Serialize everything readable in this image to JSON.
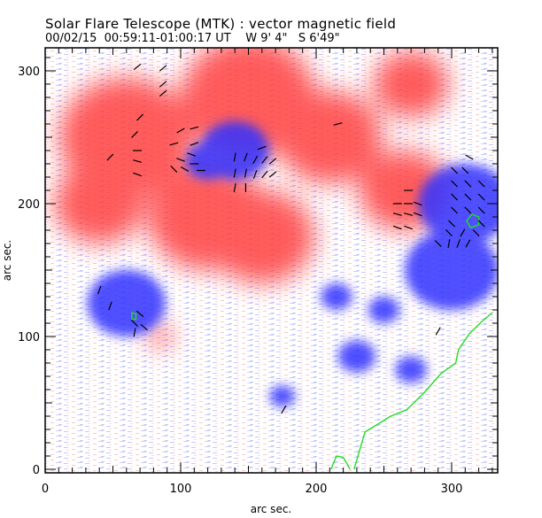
{
  "header": {
    "title": "Solar Flare Telescope (MTK) : vector magnetic field",
    "date": "00/02/15",
    "time_range": "00:59:11-01:00:17 UT",
    "position_w": "W 9' 4\"",
    "position_s": "S 6'49\""
  },
  "axes": {
    "xlabel": "arc sec.",
    "ylabel": "arc sec.",
    "xlim": [
      0,
      335
    ],
    "ylim": [
      0,
      315
    ],
    "x_ticks": [
      "0",
      "100",
      "200",
      "300"
    ],
    "y_ticks": [
      "0",
      "100",
      "200",
      "300"
    ],
    "x_tick_values": [
      0,
      100,
      200,
      300
    ],
    "y_tick_values": [
      0,
      100,
      200,
      300
    ]
  },
  "colors": {
    "positive_polarity": "#ff4040",
    "negative_polarity": "#3030ff",
    "contour": "#22dd22",
    "vectors": "#000000"
  },
  "chart_data": {
    "type": "heatmap",
    "title": "Solar Flare Telescope (MTK) : vector magnetic field",
    "xlabel": "arc sec.",
    "ylabel": "arc sec.",
    "xlim": [
      0,
      335
    ],
    "ylim": [
      0,
      315
    ],
    "positive_regions": [
      {
        "x": 60,
        "y": 250,
        "r": 45
      },
      {
        "x": 40,
        "y": 200,
        "r": 30
      },
      {
        "x": 120,
        "y": 190,
        "r": 40
      },
      {
        "x": 160,
        "y": 175,
        "r": 35
      },
      {
        "x": 150,
        "y": 280,
        "r": 45
      },
      {
        "x": 210,
        "y": 250,
        "r": 35
      },
      {
        "x": 265,
        "y": 210,
        "r": 30
      },
      {
        "x": 270,
        "y": 290,
        "r": 25
      },
      {
        "x": 85,
        "y": 100,
        "r": 8
      }
    ],
    "negative_regions": [
      {
        "x": 140,
        "y": 240,
        "r": 22
      },
      {
        "x": 120,
        "y": 232,
        "r": 14
      },
      {
        "x": 60,
        "y": 125,
        "r": 25
      },
      {
        "x": 310,
        "y": 200,
        "r": 30
      },
      {
        "x": 300,
        "y": 150,
        "r": 30
      },
      {
        "x": 215,
        "y": 130,
        "r": 10
      },
      {
        "x": 250,
        "y": 120,
        "r": 10
      },
      {
        "x": 230,
        "y": 85,
        "r": 12
      },
      {
        "x": 175,
        "y": 55,
        "r": 8
      },
      {
        "x": 270,
        "y": 75,
        "r": 10
      }
    ],
    "contours": [
      [
        [
          228,
          0
        ],
        [
          236,
          28
        ],
        [
          255,
          40
        ],
        [
          267,
          45
        ],
        [
          280,
          58
        ],
        [
          292,
          72
        ],
        [
          303,
          80
        ],
        [
          305,
          90
        ],
        [
          313,
          102
        ],
        [
          322,
          111
        ],
        [
          330,
          118
        ]
      ],
      [
        [
          211,
          0
        ],
        [
          215,
          10
        ],
        [
          220,
          9
        ],
        [
          225,
          0
        ]
      ],
      [
        [
          315,
          192
        ],
        [
          320,
          190
        ],
        [
          320,
          184
        ],
        [
          314,
          182
        ],
        [
          311,
          187
        ]
      ],
      [
        [
          64,
          118
        ],
        [
          67,
          117
        ],
        [
          67,
          113
        ],
        [
          64,
          113
        ]
      ]
    ],
    "vectors": [
      {
        "x": 68,
        "y": 303,
        "a": 40
      },
      {
        "x": 87,
        "y": 302,
        "a": 40
      },
      {
        "x": 87,
        "y": 290,
        "a": 40
      },
      {
        "x": 87,
        "y": 283,
        "a": 40
      },
      {
        "x": 70,
        "y": 265,
        "a": 45
      },
      {
        "x": 66,
        "y": 252,
        "a": 45
      },
      {
        "x": 100,
        "y": 255,
        "a": 30
      },
      {
        "x": 110,
        "y": 257,
        "a": 15
      },
      {
        "x": 95,
        "y": 245,
        "a": 15
      },
      {
        "x": 110,
        "y": 245,
        "a": 20
      },
      {
        "x": 110,
        "y": 230,
        "a": 0
      },
      {
        "x": 100,
        "y": 233,
        "a": -20
      },
      {
        "x": 108,
        "y": 237,
        "a": -20
      },
      {
        "x": 95,
        "y": 226,
        "a": -45
      },
      {
        "x": 103,
        "y": 226,
        "a": -30
      },
      {
        "x": 115,
        "y": 225,
        "a": 0
      },
      {
        "x": 68,
        "y": 240,
        "a": 0
      },
      {
        "x": 68,
        "y": 232,
        "a": -15
      },
      {
        "x": 48,
        "y": 235,
        "a": 45
      },
      {
        "x": 68,
        "y": 222,
        "a": -20
      },
      {
        "x": 140,
        "y": 235,
        "a": 80
      },
      {
        "x": 148,
        "y": 235,
        "a": 70
      },
      {
        "x": 155,
        "y": 233,
        "a": 60
      },
      {
        "x": 162,
        "y": 233,
        "a": 50
      },
      {
        "x": 168,
        "y": 232,
        "a": 40
      },
      {
        "x": 160,
        "y": 242,
        "a": 20
      },
      {
        "x": 140,
        "y": 223,
        "a": 80
      },
      {
        "x": 148,
        "y": 223,
        "a": 80
      },
      {
        "x": 155,
        "y": 222,
        "a": 70
      },
      {
        "x": 162,
        "y": 222,
        "a": 50
      },
      {
        "x": 168,
        "y": 222,
        "a": 40
      },
      {
        "x": 140,
        "y": 212,
        "a": 80
      },
      {
        "x": 148,
        "y": 212,
        "a": 90
      },
      {
        "x": 268,
        "y": 210,
        "a": 0
      },
      {
        "x": 260,
        "y": 200,
        "a": 0
      },
      {
        "x": 268,
        "y": 200,
        "a": 0
      },
      {
        "x": 275,
        "y": 200,
        "a": -20
      },
      {
        "x": 260,
        "y": 192,
        "a": -15
      },
      {
        "x": 268,
        "y": 192,
        "a": -15
      },
      {
        "x": 275,
        "y": 192,
        "a": -20
      },
      {
        "x": 260,
        "y": 182,
        "a": -20
      },
      {
        "x": 268,
        "y": 182,
        "a": -20
      },
      {
        "x": 313,
        "y": 235,
        "a": -30
      },
      {
        "x": 302,
        "y": 225,
        "a": -45
      },
      {
        "x": 310,
        "y": 225,
        "a": -45
      },
      {
        "x": 302,
        "y": 215,
        "a": -45
      },
      {
        "x": 312,
        "y": 215,
        "a": -45
      },
      {
        "x": 322,
        "y": 215,
        "a": -45
      },
      {
        "x": 302,
        "y": 205,
        "a": -45
      },
      {
        "x": 312,
        "y": 205,
        "a": -45
      },
      {
        "x": 322,
        "y": 205,
        "a": -45
      },
      {
        "x": 302,
        "y": 195,
        "a": -45
      },
      {
        "x": 312,
        "y": 195,
        "a": -45
      },
      {
        "x": 322,
        "y": 195,
        "a": -45
      },
      {
        "x": 300,
        "y": 185,
        "a": -45
      },
      {
        "x": 322,
        "y": 185,
        "a": -45
      },
      {
        "x": 298,
        "y": 178,
        "a": -45
      },
      {
        "x": 308,
        "y": 178,
        "a": 60
      },
      {
        "x": 318,
        "y": 178,
        "a": -45
      },
      {
        "x": 298,
        "y": 170,
        "a": 80
      },
      {
        "x": 305,
        "y": 170,
        "a": 70
      },
      {
        "x": 290,
        "y": 170,
        "a": -45
      },
      {
        "x": 312,
        "y": 170,
        "a": 60
      },
      {
        "x": 40,
        "y": 135,
        "a": 70
      },
      {
        "x": 48,
        "y": 123,
        "a": 70
      },
      {
        "x": 70,
        "y": 117,
        "a": -40
      },
      {
        "x": 66,
        "y": 110,
        "a": -45
      },
      {
        "x": 73,
        "y": 107,
        "a": -40
      },
      {
        "x": 66,
        "y": 103,
        "a": 80
      },
      {
        "x": 290,
        "y": 104,
        "a": 60
      },
      {
        "x": 176,
        "y": 45,
        "a": 60
      },
      {
        "x": 216,
        "y": 260,
        "a": 15
      }
    ]
  }
}
